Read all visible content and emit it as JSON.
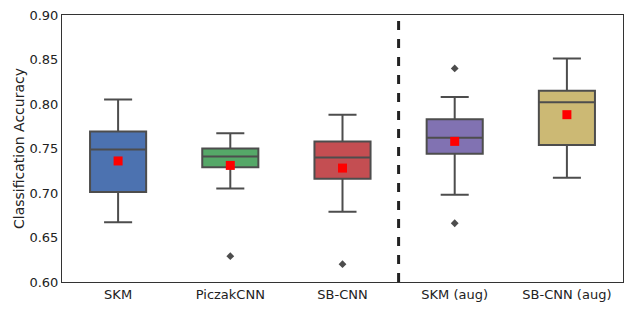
{
  "chart_data": {
    "type": "box",
    "y_label": "Classification Accuracy",
    "categories": [
      "SKM",
      "PiczakCNN",
      "SB-CNN",
      "SKM (aug)",
      "SB-CNN (aug)"
    ],
    "colors": [
      "#4c72b0",
      "#55a868",
      "#c44e52",
      "#8172b2",
      "#ccb974"
    ],
    "boxes": [
      {
        "lower_whisker": 0.667,
        "q1": 0.701,
        "median": 0.749,
        "q3": 0.769,
        "upper_whisker": 0.805,
        "mean": 0.736,
        "outliers": []
      },
      {
        "lower_whisker": 0.705,
        "q1": 0.729,
        "median": 0.741,
        "q3": 0.75,
        "upper_whisker": 0.767,
        "mean": 0.731,
        "outliers": [
          0.629
        ]
      },
      {
        "lower_whisker": 0.679,
        "q1": 0.716,
        "median": 0.74,
        "q3": 0.758,
        "upper_whisker": 0.788,
        "mean": 0.728,
        "outliers": [
          0.62
        ]
      },
      {
        "lower_whisker": 0.698,
        "q1": 0.744,
        "median": 0.762,
        "q3": 0.783,
        "upper_whisker": 0.808,
        "mean": 0.758,
        "outliers": [
          0.84,
          0.666
        ]
      },
      {
        "lower_whisker": 0.717,
        "q1": 0.754,
        "median": 0.802,
        "q3": 0.815,
        "upper_whisker": 0.851,
        "mean": 0.788,
        "outliers": []
      }
    ],
    "ylim": [
      0.6,
      0.9
    ],
    "yticks": [
      {
        "value": 0.6,
        "label": "0.60"
      },
      {
        "value": 0.65,
        "label": "0.65"
      },
      {
        "value": 0.7,
        "label": "0.70"
      },
      {
        "value": 0.75,
        "label": "0.75"
      },
      {
        "value": 0.8,
        "label": "0.80"
      },
      {
        "value": 0.85,
        "label": "0.85"
      },
      {
        "value": 0.9,
        "label": "0.90"
      }
    ],
    "grid": false
  }
}
